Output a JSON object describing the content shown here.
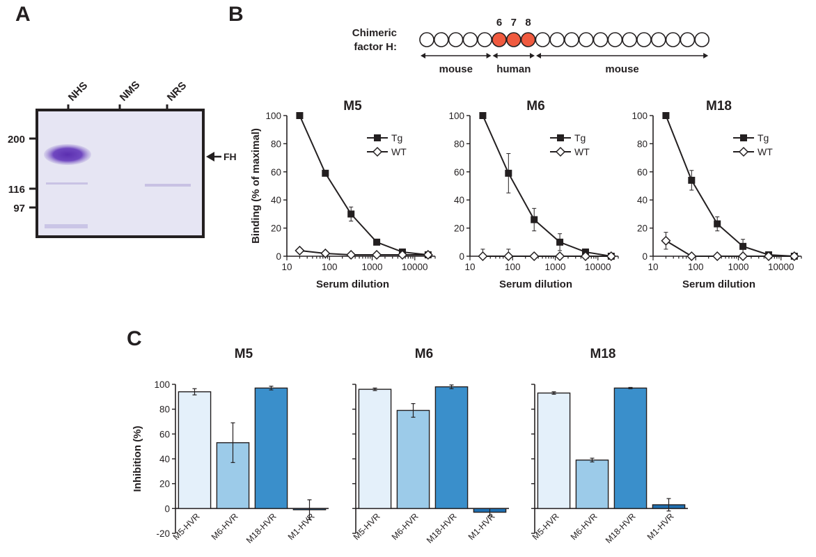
{
  "panel_letters": {
    "a": "A",
    "b": "B",
    "c": "C"
  },
  "gel": {
    "lanes": [
      "NHS",
      "NMS",
      "NRS"
    ],
    "mw_markers": [
      "200",
      "116",
      "97"
    ],
    "band_label": "FH"
  },
  "chimera": {
    "title_line1": "Chimeric",
    "title_line2": "factor H:",
    "domain_count": 20,
    "human_domains": [
      "6",
      "7",
      "8"
    ],
    "regions": [
      "mouse",
      "human",
      "mouse"
    ],
    "colors": {
      "human": "#f05a3f",
      "mouse": "#ffffff"
    }
  },
  "colors": {
    "bar_light": "#e4f0fa",
    "bar_mid": "#9ccbe9",
    "bar_dark": "#3a8fcb",
    "bar_darker": "#1f6fb0"
  },
  "chart_data": [
    {
      "type": "line",
      "title": "M5",
      "xlabel": "Serum dilution",
      "ylabel": "Binding (% of maximal)",
      "xscale": "log",
      "xlim": [
        10,
        30000
      ],
      "ylim": [
        0,
        100
      ],
      "xticks": [
        "10",
        "100",
        "1000",
        "10000"
      ],
      "yticks": [
        "0",
        "20",
        "40",
        "60",
        "80",
        "100"
      ],
      "legend_position": "top-right",
      "series": [
        {
          "name": "Tg",
          "marker": "square",
          "x": [
            20,
            80,
            320,
            1280,
            5120,
            20480
          ],
          "y": [
            100,
            59,
            30,
            10,
            3,
            1
          ],
          "err": [
            0,
            2,
            5,
            1,
            1,
            1
          ]
        },
        {
          "name": "WT",
          "marker": "diamond",
          "x": [
            20,
            80,
            320,
            1280,
            5120,
            20480
          ],
          "y": [
            4,
            2,
            1,
            1,
            1,
            1
          ],
          "err": [
            1,
            1,
            1,
            1,
            1,
            1
          ]
        }
      ]
    },
    {
      "type": "line",
      "title": "M6",
      "xlabel": "Serum dilution",
      "ylabel": "",
      "xscale": "log",
      "xlim": [
        10,
        30000
      ],
      "ylim": [
        0,
        100
      ],
      "xticks": [
        "10",
        "100",
        "1000",
        "10000"
      ],
      "yticks": [
        "0",
        "20",
        "40",
        "60",
        "80",
        "100"
      ],
      "legend_position": "top-right",
      "series": [
        {
          "name": "Tg",
          "marker": "square",
          "x": [
            20,
            80,
            320,
            1280,
            5120,
            20480
          ],
          "y": [
            100,
            59,
            26,
            10,
            3,
            0
          ],
          "err": [
            0,
            14,
            8,
            6,
            1,
            1
          ]
        },
        {
          "name": "WT",
          "marker": "diamond",
          "x": [
            20,
            80,
            320,
            1280,
            5120,
            20480
          ],
          "y": [
            0,
            0,
            0,
            0,
            0,
            0
          ],
          "err": [
            5,
            5,
            1,
            1,
            1,
            1
          ]
        }
      ]
    },
    {
      "type": "line",
      "title": "M18",
      "xlabel": "Serum dilution",
      "ylabel": "",
      "xscale": "log",
      "xlim": [
        10,
        30000
      ],
      "ylim": [
        0,
        100
      ],
      "xticks": [
        "10",
        "100",
        "1000",
        "10000"
      ],
      "yticks": [
        "0",
        "20",
        "40",
        "60",
        "80",
        "100"
      ],
      "legend_position": "top-right",
      "series": [
        {
          "name": "Tg",
          "marker": "square",
          "x": [
            20,
            80,
            320,
            1280,
            5120,
            20480
          ],
          "y": [
            100,
            54,
            23,
            7,
            1,
            0
          ],
          "err": [
            0,
            7,
            5,
            5,
            1,
            1
          ]
        },
        {
          "name": "WT",
          "marker": "diamond",
          "x": [
            20,
            80,
            320,
            1280,
            5120,
            20480
          ],
          "y": [
            11,
            0,
            0,
            0,
            0,
            0
          ],
          "err": [
            6,
            1,
            1,
            1,
            1,
            1
          ]
        }
      ]
    },
    {
      "type": "bar",
      "title": "M5",
      "ylabel": "Inhibition (%)",
      "ylim": [
        -20,
        100
      ],
      "yticks": [
        "-20",
        "0",
        "20",
        "40",
        "60",
        "80",
        "100"
      ],
      "categories": [
        "M5-HVR",
        "M6-HVR",
        "M18-HVR",
        "M1-HVR"
      ],
      "values": [
        94,
        53,
        97,
        -1
      ],
      "errors": [
        2.5,
        16,
        1.5,
        8
      ]
    },
    {
      "type": "bar",
      "title": "M6",
      "ylabel": "",
      "ylim": [
        -20,
        100
      ],
      "yticks": [
        "-20",
        "0",
        "20",
        "40",
        "60",
        "80",
        "100"
      ],
      "categories": [
        "M5-HVR",
        "M6-HVR",
        "M18-HVR",
        "M1-HVR"
      ],
      "values": [
        96,
        79,
        98,
        -3
      ],
      "errors": [
        1,
        5.5,
        1.5,
        3
      ]
    },
    {
      "type": "bar",
      "title": "M18",
      "ylabel": "",
      "ylim": [
        -20,
        100
      ],
      "yticks": [
        "-20",
        "0",
        "20",
        "40",
        "60",
        "80",
        "100"
      ],
      "categories": [
        "M5-HVR",
        "M6-HVR",
        "M18-HVR",
        "M1-HVR"
      ],
      "values": [
        93,
        39,
        97,
        3
      ],
      "errors": [
        1,
        1.5,
        0.5,
        5
      ]
    }
  ]
}
